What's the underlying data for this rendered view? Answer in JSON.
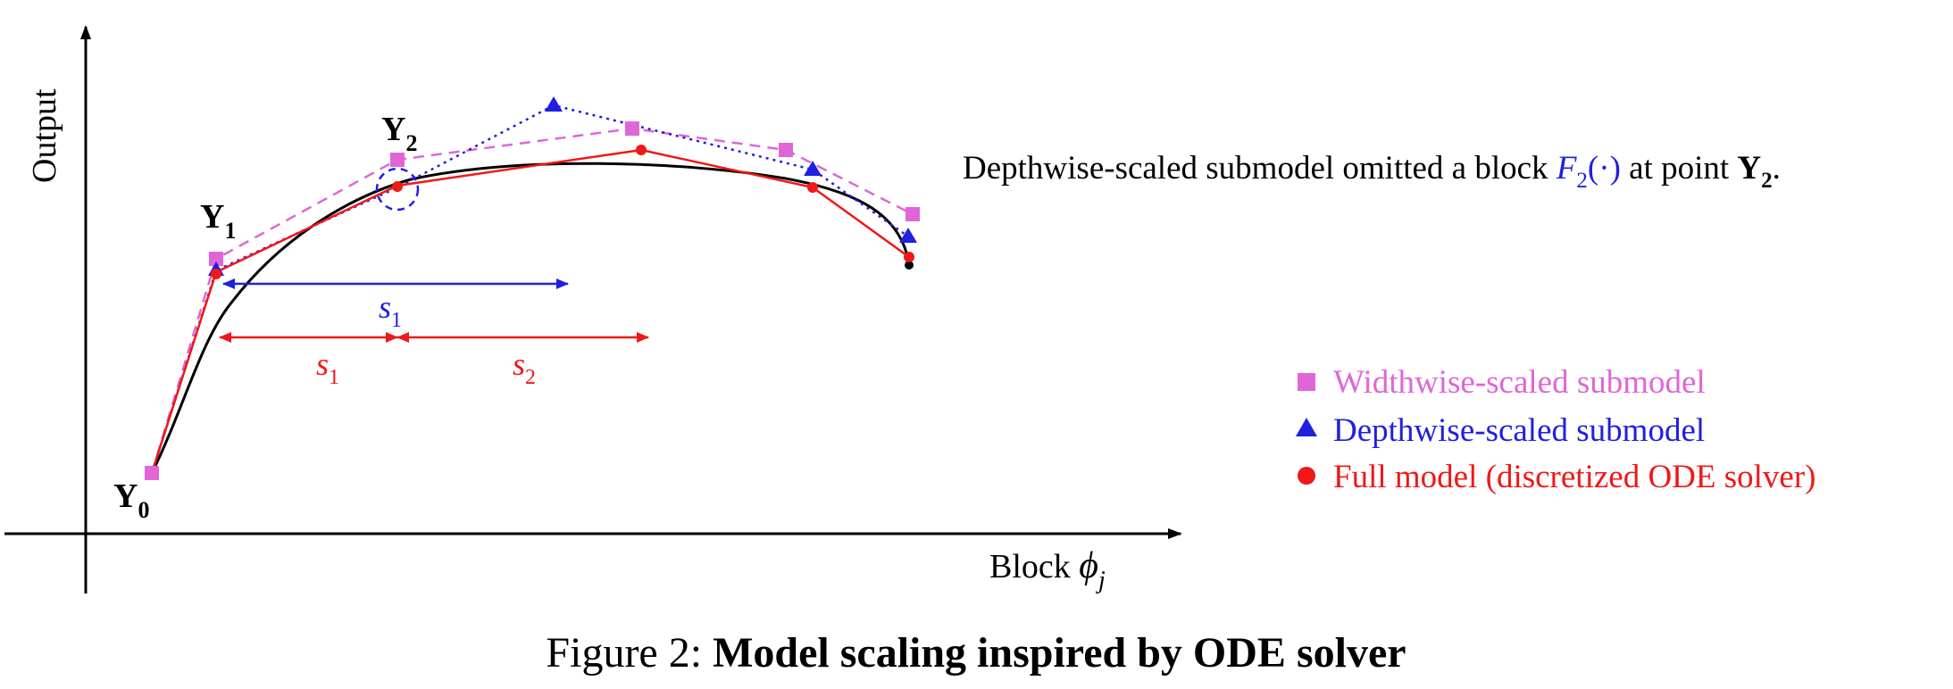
{
  "axes": {
    "y_label": "Output",
    "x_label_prefix": "Block ",
    "x_label_symbol": "ϕ",
    "x_label_subscript": "j"
  },
  "points": {
    "y0": {
      "base": "Y",
      "sub": "0"
    },
    "y1": {
      "base": "Y",
      "sub": "1"
    },
    "y2": {
      "base": "Y",
      "sub": "2"
    }
  },
  "steps": {
    "blue_s1": {
      "base": "s",
      "sub": "1"
    },
    "red_s1": {
      "base": "s",
      "sub": "1"
    },
    "red_s2": {
      "base": "s",
      "sub": "2"
    }
  },
  "annotation": {
    "prefix": "Depthwise-scaled submodel omitted a block ",
    "func_base": "F",
    "func_sub": "2",
    "func_arg": "(·)",
    "middle": " at point ",
    "point_base": "Y",
    "point_sub": "2",
    "suffix": "."
  },
  "legend": {
    "position": "right",
    "items": [
      {
        "label": "Widthwise-scaled submodel",
        "color": "#e066d8",
        "marker": "square"
      },
      {
        "label": "Depthwise-scaled submodel",
        "color": "#2020e0",
        "marker": "triangle"
      },
      {
        "label": "Full model (discretized ODE solver)",
        "color": "#f01818",
        "marker": "circle"
      }
    ]
  },
  "caption": {
    "prefix": "Figure 2: ",
    "title": "Model scaling inspired by ODE solver"
  },
  "colors": {
    "widthwise": "#e066d8",
    "depthwise": "#2020e0",
    "full": "#f01818",
    "curve": "#000000"
  }
}
